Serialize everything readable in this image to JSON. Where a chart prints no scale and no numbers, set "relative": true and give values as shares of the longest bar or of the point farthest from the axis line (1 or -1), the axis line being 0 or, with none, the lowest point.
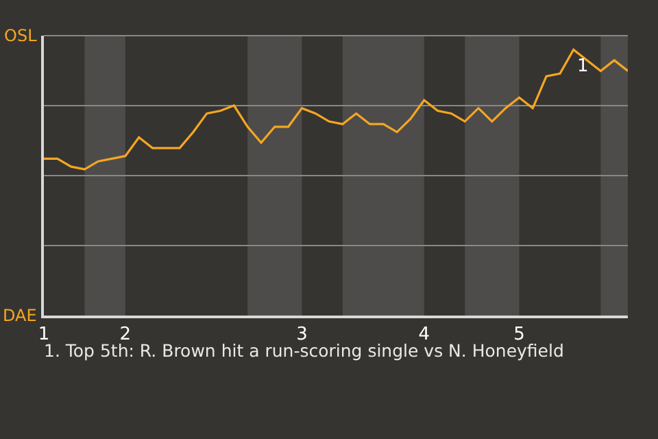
{
  "chart_data": {
    "type": "line",
    "relative": true,
    "categories": [
      "1",
      null,
      null,
      null,
      null,
      null,
      "2",
      null,
      null,
      null,
      null,
      null,
      null,
      null,
      null,
      null,
      null,
      null,
      null,
      "3",
      null,
      null,
      null,
      null,
      null,
      null,
      null,
      null,
      "4",
      null,
      null,
      null,
      null,
      null,
      null,
      "5",
      null,
      null,
      null,
      null,
      null,
      null,
      null,
      null
    ],
    "series": [
      {
        "color": "#f5a623",
        "values": [
          0.59,
          0.59,
          0.56,
          0.55,
          0.58,
          0.59,
          0.6,
          0.67,
          0.63,
          0.63,
          0.63,
          0.69,
          0.76,
          0.77,
          0.79,
          0.71,
          0.65,
          0.71,
          0.71,
          0.78,
          0.76,
          0.73,
          0.72,
          0.76,
          0.72,
          0.72,
          0.69,
          0.74,
          0.81,
          0.77,
          0.76,
          0.73,
          0.78,
          0.73,
          0.78,
          0.82,
          0.78,
          0.9,
          0.91,
          1,
          0.96,
          0.92,
          0.96,
          0.92
        ]
      }
    ],
    "grid": false,
    "marker": "none",
    "line_style": "solid",
    "annotations": [
      "OSL",
      "DAE",
      {
        "text": "1",
        "y": 1
      },
      "1. Top 5th: R. Brown hit a run-scoring single vs N. Honeyfield"
    ]
  }
}
